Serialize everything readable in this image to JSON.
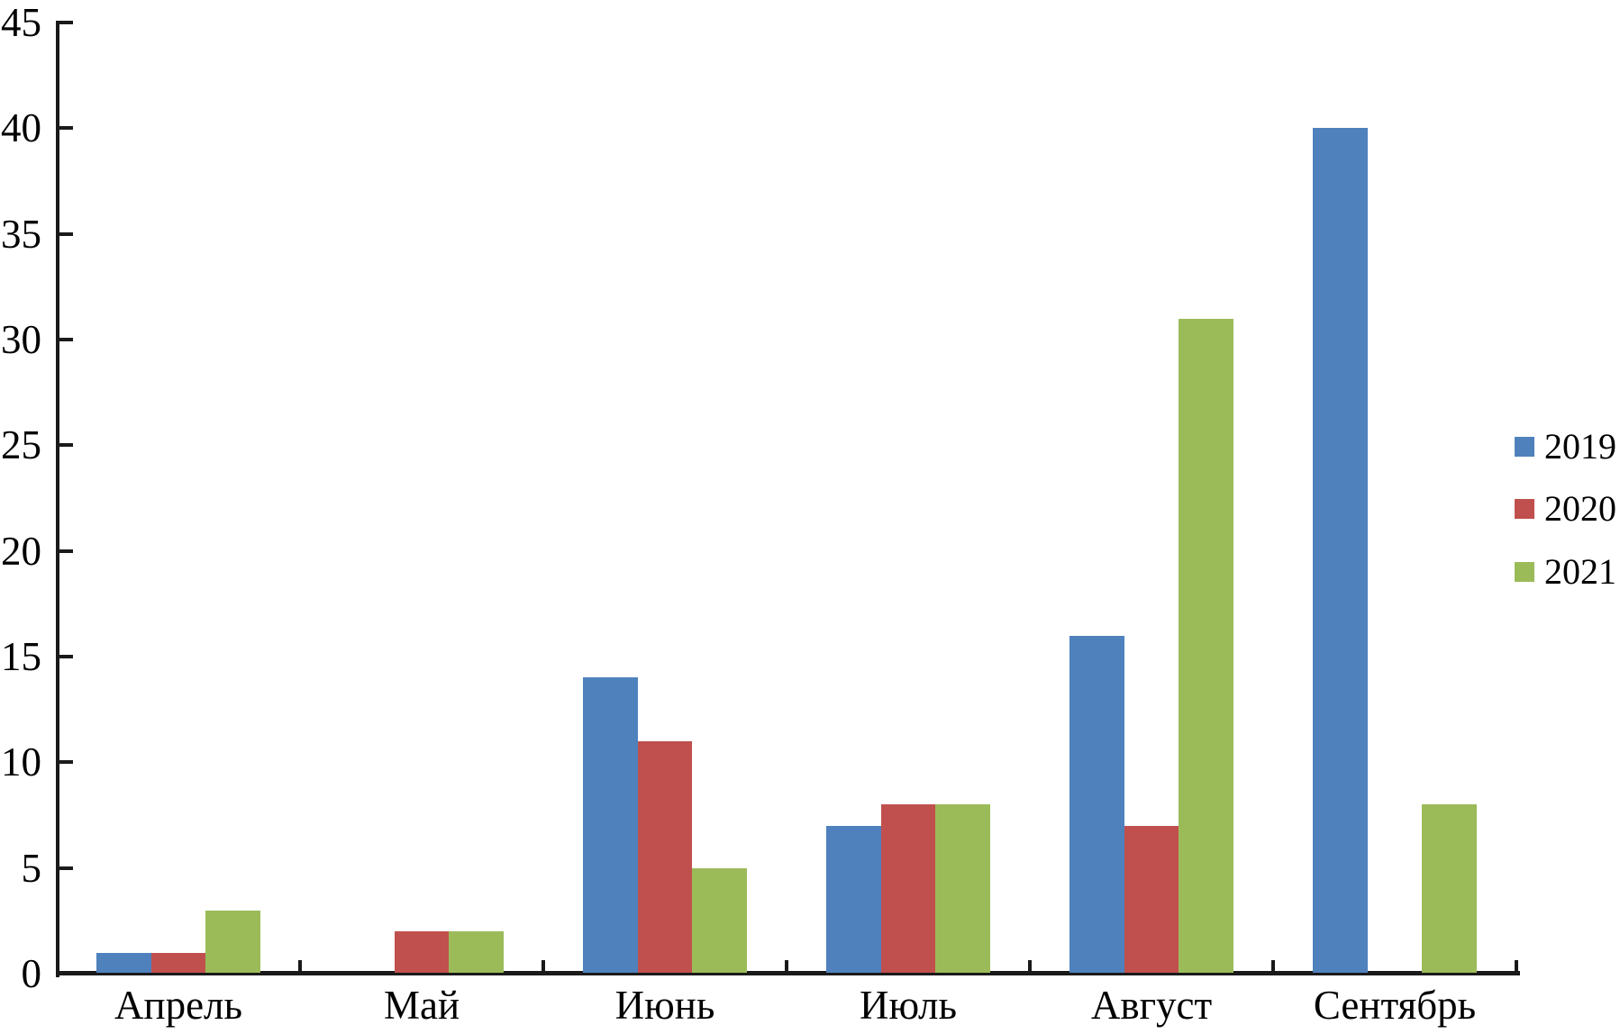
{
  "chart_data": {
    "type": "bar",
    "title": "",
    "xlabel": "",
    "ylabel": "",
    "categories": [
      "Апрель",
      "Май",
      "Июнь",
      "Июль",
      "Август",
      "Сентябрь"
    ],
    "series": [
      {
        "name": "2019",
        "color": "#4F81BD",
        "values": [
          1,
          0,
          14,
          7,
          16,
          40
        ]
      },
      {
        "name": "2020",
        "color": "#C0504D",
        "values": [
          1,
          2,
          11,
          8,
          7,
          0
        ]
      },
      {
        "name": "2021",
        "color": "#9BBB59",
        "values": [
          3,
          2,
          5,
          8,
          31,
          8
        ]
      }
    ],
    "ylim": [
      0,
      45
    ],
    "ytick_step": 5,
    "yticks": [
      0,
      5,
      10,
      15,
      20,
      25,
      30,
      35,
      40,
      45
    ],
    "grid": false,
    "legend_position": "right",
    "axis_color": "#1a1a1a",
    "text_color": "#000000",
    "background_color": "#ffffff"
  }
}
